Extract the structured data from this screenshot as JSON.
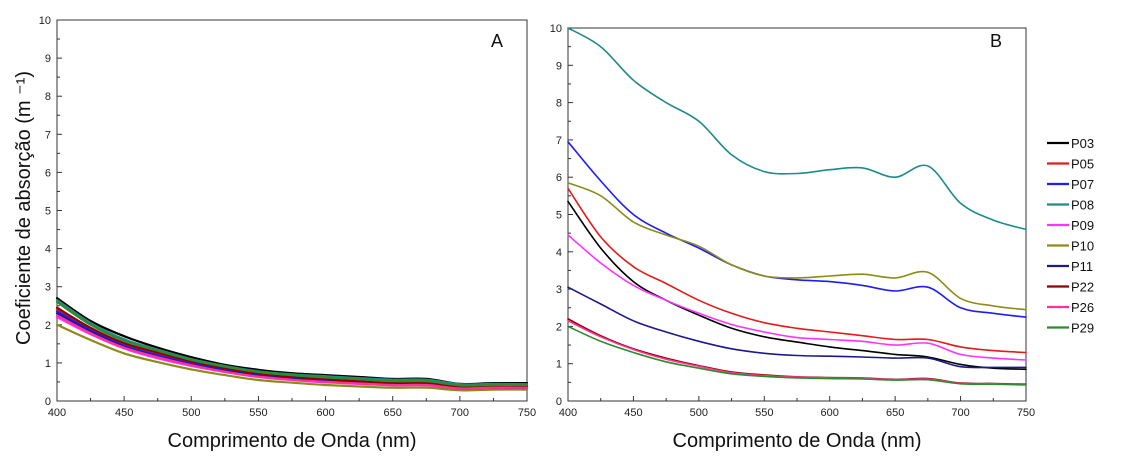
{
  "y_axis_label": "Coeficiente de absorção (m ⁻¹)",
  "chart_data": [
    {
      "type": "line",
      "panel_label": "A",
      "xlabel": "Comprimento de Onda (nm)",
      "ylabel": "Coeficiente de absorção (m ⁻¹)",
      "xlim": [
        400,
        750
      ],
      "ylim": [
        0,
        10
      ],
      "xticks": [
        400,
        450,
        500,
        550,
        600,
        650,
        700,
        750
      ],
      "yticks": [
        0,
        1,
        2,
        3,
        4,
        5,
        6,
        7,
        8,
        9,
        10
      ],
      "grid": false,
      "x": [
        400,
        425,
        450,
        475,
        500,
        525,
        550,
        575,
        600,
        625,
        650,
        675,
        700,
        725,
        750
      ],
      "series": [
        {
          "name": "P03",
          "color": "#000000",
          "values": [
            2.7,
            2.1,
            1.7,
            1.4,
            1.15,
            0.95,
            0.82,
            0.73,
            0.68,
            0.63,
            0.58,
            0.58,
            0.45,
            0.47,
            0.47
          ]
        },
        {
          "name": "P05",
          "color": "#e41a1c",
          "values": [
            2.4,
            1.9,
            1.5,
            1.25,
            1.02,
            0.85,
            0.7,
            0.62,
            0.55,
            0.5,
            0.45,
            0.45,
            0.35,
            0.38,
            0.38
          ]
        },
        {
          "name": "P07",
          "color": "#1c1cff",
          "values": [
            2.35,
            1.85,
            1.45,
            1.2,
            0.98,
            0.82,
            0.68,
            0.6,
            0.53,
            0.48,
            0.44,
            0.44,
            0.34,
            0.36,
            0.36
          ]
        },
        {
          "name": "P08",
          "color": "#1f8a8a",
          "values": [
            2.65,
            2.05,
            1.62,
            1.35,
            1.1,
            0.92,
            0.78,
            0.7,
            0.65,
            0.6,
            0.56,
            0.56,
            0.44,
            0.45,
            0.44
          ]
        },
        {
          "name": "P09",
          "color": "#ff33ff",
          "values": [
            2.2,
            1.75,
            1.38,
            1.12,
            0.92,
            0.76,
            0.63,
            0.55,
            0.49,
            0.45,
            0.41,
            0.41,
            0.32,
            0.34,
            0.34
          ]
        },
        {
          "name": "P10",
          "color": "#8c8c1a",
          "values": [
            2.0,
            1.6,
            1.25,
            1.02,
            0.83,
            0.68,
            0.55,
            0.48,
            0.42,
            0.38,
            0.35,
            0.35,
            0.28,
            0.3,
            0.3
          ]
        },
        {
          "name": "P11",
          "color": "#1a1a8c",
          "values": [
            2.3,
            1.82,
            1.42,
            1.17,
            0.95,
            0.79,
            0.66,
            0.58,
            0.51,
            0.47,
            0.43,
            0.43,
            0.33,
            0.35,
            0.35
          ]
        },
        {
          "name": "P22",
          "color": "#8b0000",
          "values": [
            2.45,
            1.92,
            1.52,
            1.27,
            1.04,
            0.86,
            0.72,
            0.64,
            0.57,
            0.52,
            0.47,
            0.47,
            0.37,
            0.39,
            0.39
          ]
        },
        {
          "name": "P26",
          "color": "#ff3399",
          "values": [
            2.25,
            1.78,
            1.4,
            1.15,
            0.94,
            0.77,
            0.64,
            0.56,
            0.5,
            0.46,
            0.42,
            0.42,
            0.33,
            0.35,
            0.35
          ]
        },
        {
          "name": "P29",
          "color": "#2e8b2e",
          "values": [
            2.6,
            2.0,
            1.58,
            1.32,
            1.08,
            0.9,
            0.76,
            0.68,
            0.62,
            0.57,
            0.52,
            0.52,
            0.41,
            0.42,
            0.42
          ]
        }
      ]
    },
    {
      "type": "line",
      "panel_label": "B",
      "xlabel": "Comprimento de Onda (nm)",
      "ylabel": "",
      "xlim": [
        400,
        750
      ],
      "ylim": [
        0,
        10
      ],
      "xticks": [
        400,
        450,
        500,
        550,
        600,
        650,
        700,
        750
      ],
      "yticks": [
        0,
        1,
        2,
        3,
        4,
        5,
        6,
        7,
        8,
        9,
        10
      ],
      "grid": false,
      "legend_position": "right",
      "x": [
        400,
        425,
        450,
        475,
        500,
        525,
        550,
        575,
        600,
        625,
        650,
        675,
        700,
        725,
        750
      ],
      "series": [
        {
          "name": "P03",
          "color": "#000000",
          "values": [
            5.35,
            4.1,
            3.2,
            2.7,
            2.3,
            1.95,
            1.72,
            1.58,
            1.45,
            1.35,
            1.25,
            1.18,
            0.98,
            0.88,
            0.85
          ]
        },
        {
          "name": "P05",
          "color": "#e41a1c",
          "values": [
            5.7,
            4.4,
            3.6,
            3.15,
            2.7,
            2.35,
            2.1,
            1.95,
            1.85,
            1.75,
            1.65,
            1.65,
            1.45,
            1.35,
            1.3
          ]
        },
        {
          "name": "P07",
          "color": "#1c1cff",
          "values": [
            6.95,
            5.9,
            5.0,
            4.5,
            4.1,
            3.65,
            3.35,
            3.25,
            3.2,
            3.1,
            2.95,
            3.05,
            2.5,
            2.35,
            2.25
          ]
        },
        {
          "name": "P08",
          "color": "#1f8a8a",
          "values": [
            10.0,
            9.5,
            8.6,
            8.0,
            7.5,
            6.6,
            6.15,
            6.1,
            6.2,
            6.25,
            6.0,
            6.3,
            5.3,
            4.85,
            4.6
          ]
        },
        {
          "name": "P09",
          "color": "#ff33ff",
          "values": [
            4.45,
            3.7,
            3.1,
            2.7,
            2.35,
            2.05,
            1.85,
            1.7,
            1.65,
            1.6,
            1.5,
            1.55,
            1.25,
            1.15,
            1.1
          ]
        },
        {
          "name": "P10",
          "color": "#8c8c1a",
          "values": [
            5.85,
            5.5,
            4.8,
            4.45,
            4.15,
            3.65,
            3.35,
            3.3,
            3.35,
            3.4,
            3.3,
            3.45,
            2.75,
            2.55,
            2.45
          ]
        },
        {
          "name": "P11",
          "color": "#1a1a8c",
          "values": [
            3.05,
            2.6,
            2.15,
            1.85,
            1.6,
            1.4,
            1.28,
            1.22,
            1.2,
            1.18,
            1.15,
            1.15,
            0.92,
            0.9,
            0.9
          ]
        },
        {
          "name": "P22",
          "color": "#8b0000",
          "values": [
            2.2,
            1.75,
            1.4,
            1.15,
            0.95,
            0.78,
            0.7,
            0.65,
            0.63,
            0.62,
            0.58,
            0.6,
            0.48,
            0.47,
            0.45
          ]
        },
        {
          "name": "P26",
          "color": "#ff3399",
          "values": [
            2.15,
            1.72,
            1.38,
            1.12,
            0.93,
            0.76,
            0.68,
            0.64,
            0.62,
            0.61,
            0.57,
            0.59,
            0.47,
            0.46,
            0.44
          ]
        },
        {
          "name": "P29",
          "color": "#2e8b2e",
          "values": [
            2.0,
            1.6,
            1.3,
            1.05,
            0.88,
            0.73,
            0.66,
            0.62,
            0.6,
            0.59,
            0.56,
            0.57,
            0.46,
            0.45,
            0.43
          ]
        }
      ]
    }
  ]
}
